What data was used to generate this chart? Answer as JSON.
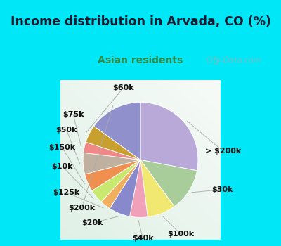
{
  "title": "Income distribution in Arvada, CO (%)",
  "subtitle": "Asian residents",
  "title_color": "#1a1a2e",
  "subtitle_color": "#2e8b4a",
  "bg_cyan": "#00e8f8",
  "bg_chart": "#e0f0e8",
  "watermark": "City-Data.com",
  "labels": [
    "> $200k",
    "$30k",
    "$100k",
    "$40k",
    "$20k",
    "$125k",
    "$10k",
    "$150k",
    "$50k",
    "$75k",
    "$60k",
    "$200k"
  ],
  "values": [
    28,
    12,
    8,
    5,
    6,
    3,
    4,
    5,
    6,
    3,
    5,
    15
  ],
  "colors": [
    "#b8a9d9",
    "#a8cc9a",
    "#f0e870",
    "#f0a0b8",
    "#8888cc",
    "#f0b060",
    "#c8e870",
    "#f09050",
    "#c0b0a0",
    "#f08888",
    "#c8a030",
    "#9090cc"
  ],
  "startangle": 90,
  "label_fontsize": 8,
  "figsize": [
    4.0,
    3.5
  ],
  "dpi": 100
}
